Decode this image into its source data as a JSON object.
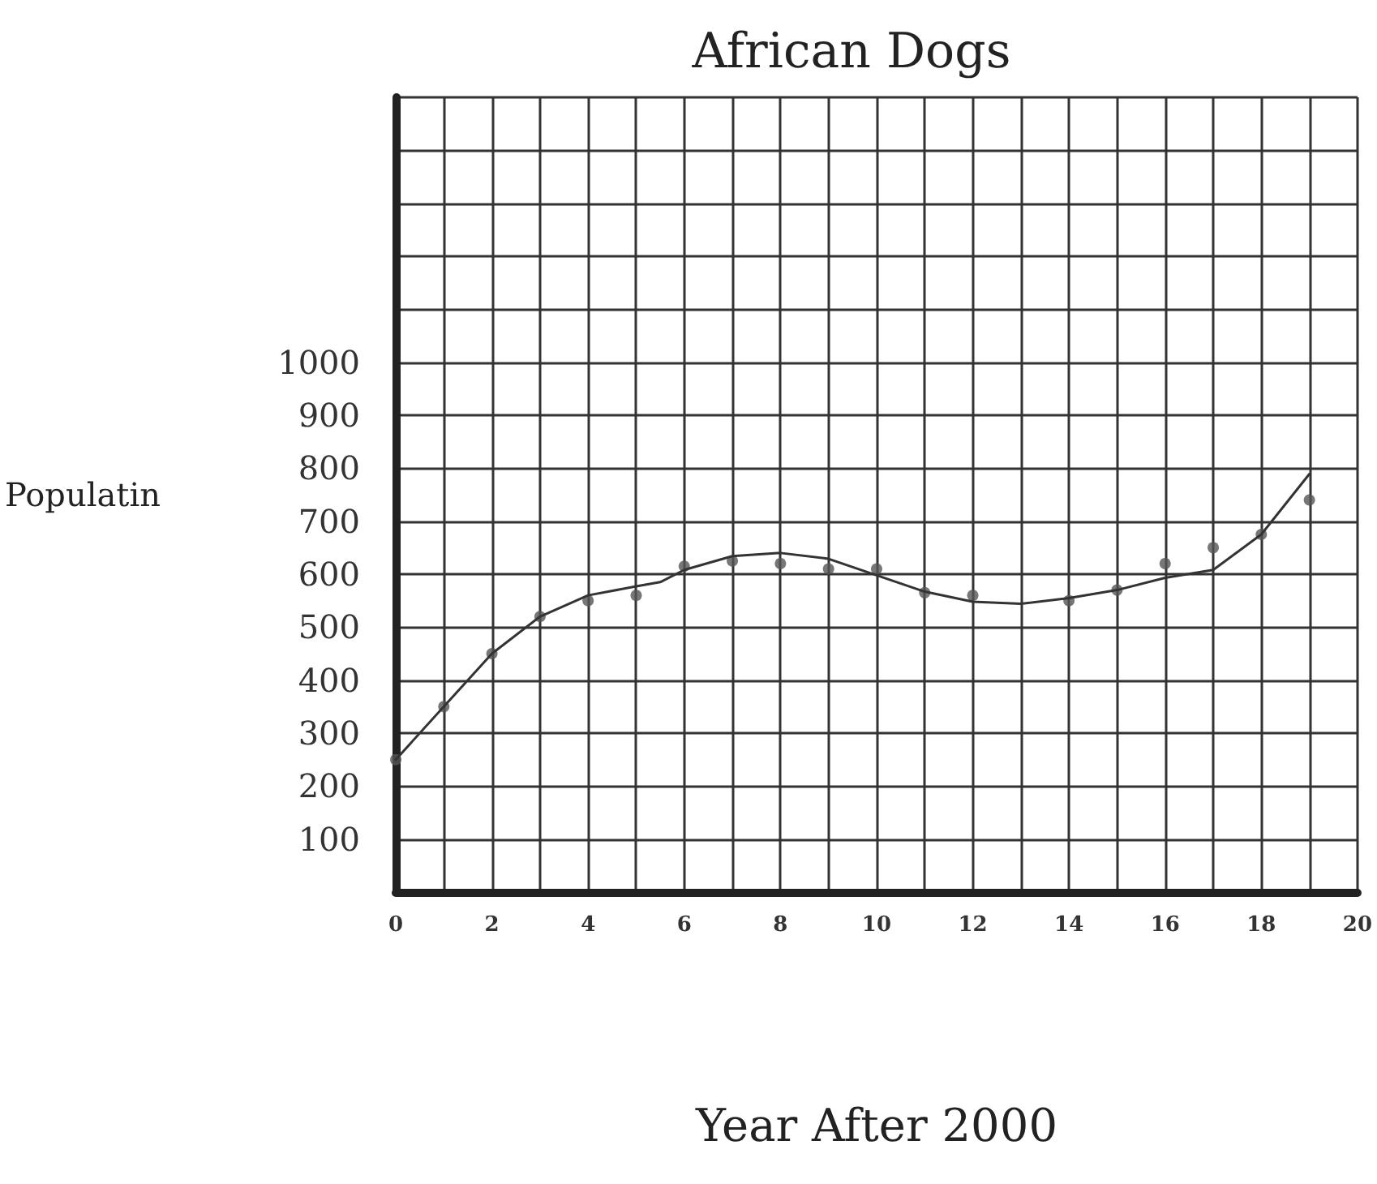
{
  "chart_data": {
    "type": "scatter",
    "title": "African Dogs",
    "xlabel": "Year After 2000",
    "ylabel": "Populatin",
    "xlim": [
      0,
      20
    ],
    "xticks": [
      0,
      {
        "value": 1,
        "label": null
      },
      2,
      {
        "value": 3,
        "label": null
      },
      4,
      {
        "value": 5,
        "label": null
      },
      6,
      {
        "value": 7,
        "label": null
      },
      8,
      {
        "value": 9,
        "label": null
      },
      10,
      {
        "value": 11,
        "label": null
      },
      12,
      {
        "value": 13,
        "label": null
      },
      14,
      {
        "value": 15,
        "label": null
      },
      16,
      {
        "value": 17,
        "label": null
      },
      18,
      {
        "value": 19,
        "label": null
      },
      20
    ],
    "ylim": [
      0,
      1500
    ],
    "yticks": [
      {
        "value": 0,
        "label": null
      },
      100,
      200,
      300,
      400,
      500,
      600,
      700,
      800,
      900,
      1000,
      {
        "value": 1100,
        "label": null
      },
      {
        "value": 1200,
        "label": null
      },
      {
        "value": 1300,
        "label": null
      },
      {
        "value": 1400,
        "label": null
      },
      {
        "value": 1500,
        "label": null
      }
    ],
    "grid": true,
    "series": [
      {
        "color": "#555555",
        "marker": "circle",
        "x": [
          0,
          1,
          2,
          3,
          4,
          5,
          6,
          7,
          8,
          9,
          10,
          11,
          12,
          14,
          15,
          16,
          17,
          18,
          19
        ],
        "values": [
          250,
          350,
          450,
          520,
          550,
          560,
          615,
          625,
          620,
          610,
          610,
          565,
          560,
          550,
          570,
          620,
          650,
          675,
          740
        ]
      },
      {
        "type": "line",
        "color": "#333333",
        "marker": "none",
        "line_style": "solid",
        "x": [
          0,
          1,
          2,
          3,
          4,
          5,
          5.5,
          6,
          7,
          8,
          9,
          10,
          11,
          12,
          13,
          14,
          15,
          16,
          17,
          18,
          19
        ],
        "values": [
          250,
          350,
          450,
          520,
          560,
          577,
          585,
          608,
          634,
          640,
          629,
          598,
          567,
          548,
          544,
          555,
          570,
          593,
          608,
          675,
          789
        ]
      }
    ]
  }
}
